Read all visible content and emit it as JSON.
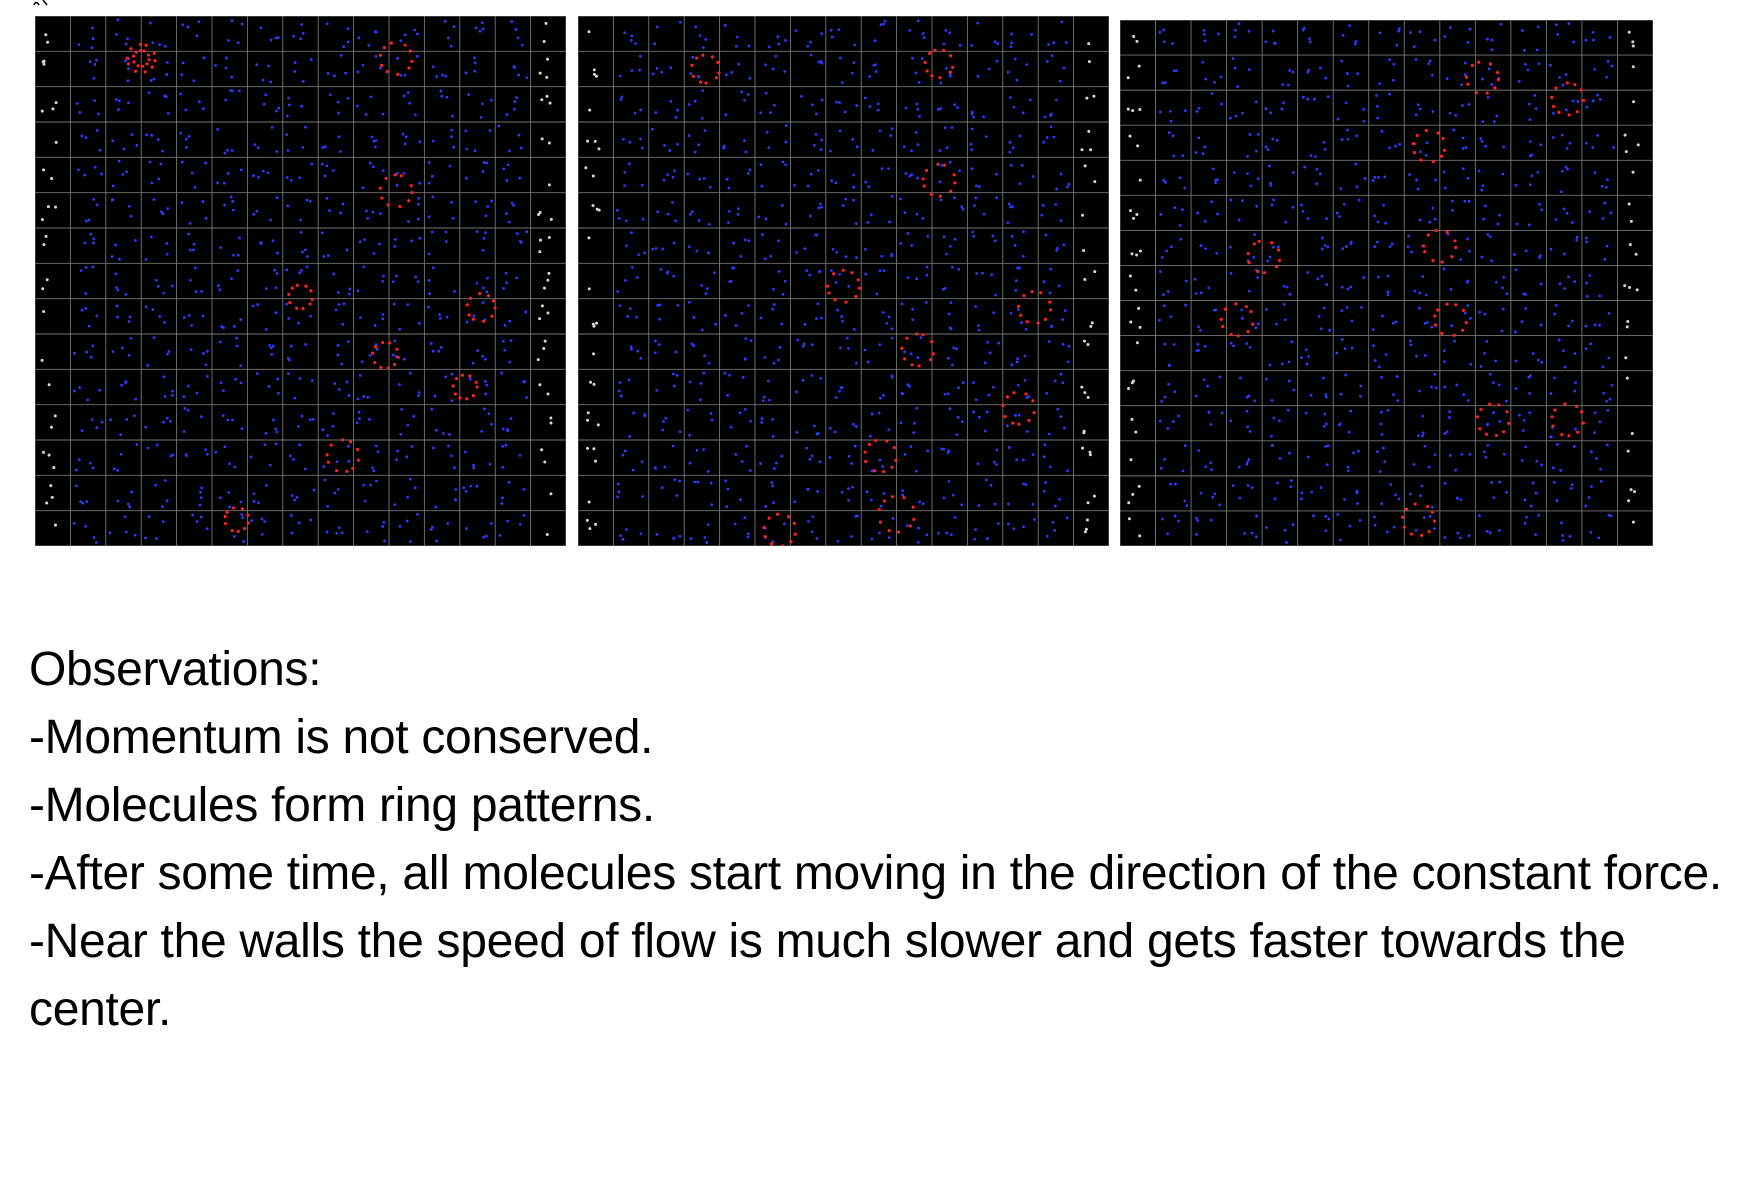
{
  "panels": [
    {
      "name": "simulation-panel-1"
    },
    {
      "name": "simulation-panel-2"
    },
    {
      "name": "simulation-panel-3"
    }
  ],
  "colors": {
    "background": "#000000",
    "grid": "#8a8a8a",
    "fluid_particle": "#2a3cff",
    "obstacle_particle": "#ff2020",
    "wall_particle": "#d8d8d8"
  },
  "observations": {
    "heading": "Observations:",
    "items": [
      "-Momentum is not conserved.",
      "-Molecules form ring patterns.",
      "-After some time, all molecules start moving in the direction of the constant force.",
      "-Near the walls the speed of flow is much slower and gets faster towards the center."
    ]
  }
}
